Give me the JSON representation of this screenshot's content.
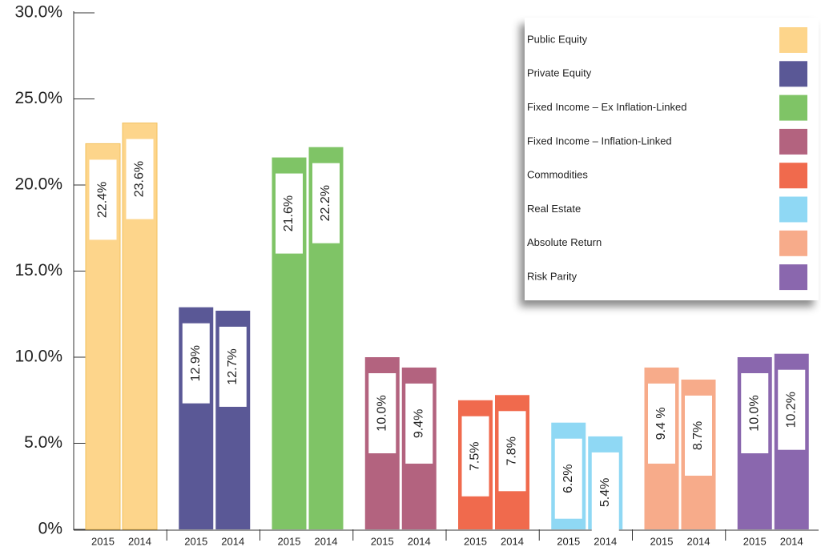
{
  "chart_data": {
    "type": "bar",
    "categories": [
      "2015",
      "2014"
    ],
    "series": [
      {
        "name": "Public Equity",
        "color": "#fdd58b",
        "values": [
          22.4,
          23.6
        ],
        "value_labels": [
          "22.4%",
          "23.6%"
        ]
      },
      {
        "name": "Private Equity",
        "color": "#5a5896",
        "values": [
          12.9,
          12.7
        ],
        "value_labels": [
          "12.9%",
          "12.7%"
        ]
      },
      {
        "name": "Fixed Income – Ex Inflation-Linked",
        "color": "#7fc466",
        "values": [
          21.6,
          22.2
        ],
        "value_labels": [
          "21.6%",
          "22.2%"
        ]
      },
      {
        "name": "Fixed Income – Inflation-Linked",
        "color": "#b3637f",
        "values": [
          10.0,
          9.4
        ],
        "value_labels": [
          "10.0%",
          "9.4%"
        ]
      },
      {
        "name": "Commodities",
        "color": "#f06a4d",
        "values": [
          7.5,
          7.8
        ],
        "value_labels": [
          "7.5%",
          "7.8%"
        ]
      },
      {
        "name": "Real Estate",
        "color": "#8fd8f4",
        "values": [
          6.2,
          5.4
        ],
        "value_labels": [
          "6.2%",
          "5.4%"
        ]
      },
      {
        "name": "Absolute Return",
        "color": "#f7ab8a",
        "values": [
          9.4,
          8.7
        ],
        "value_labels": [
          "9.4 %",
          "8.7%"
        ]
      },
      {
        "name": "Risk Parity",
        "color": "#8a67ae",
        "values": [
          10.0,
          10.2
        ],
        "value_labels": [
          "10.0%",
          "10.2%"
        ]
      }
    ],
    "ylim": [
      0,
      30
    ],
    "yticks": [
      {
        "value": 0,
        "label": "0%"
      },
      {
        "value": 5,
        "label": "5.0%"
      },
      {
        "value": 10,
        "label": "10.0%"
      },
      {
        "value": 15,
        "label": "15.0%"
      },
      {
        "value": 20,
        "label": "20.0%"
      },
      {
        "value": 25,
        "label": "25.0%"
      },
      {
        "value": 30,
        "label": "30.0%"
      }
    ],
    "legend": "top-right"
  }
}
